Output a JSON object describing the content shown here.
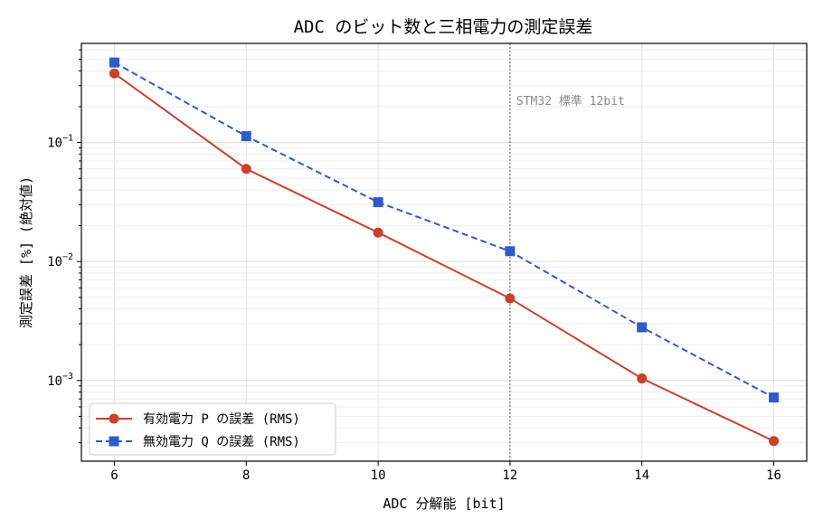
{
  "chart_data": {
    "type": "line",
    "title": "ADC のビット数と三相電力の測定誤差",
    "xlabel": "ADC 分解能 [bit]",
    "ylabel": "測定誤差 [%] (絶対値)",
    "x": [
      6,
      8,
      10,
      12,
      14,
      16
    ],
    "xlim": [
      5.5,
      16.5
    ],
    "ylim": [
      0.00021,
      0.68
    ],
    "yscale": "log",
    "xticks": [
      "6",
      "8",
      "10",
      "12",
      "14",
      "16"
    ],
    "yticks": [
      {
        "value": 0.001,
        "base": "10",
        "exp": "−3"
      },
      {
        "value": 0.01,
        "base": "10",
        "exp": "−2"
      },
      {
        "value": 0.1,
        "base": "10",
        "exp": "−1"
      }
    ],
    "grid": true,
    "legend_position": "lower-left",
    "series": [
      {
        "name": "有効電力 P の誤差 (RMS)",
        "values": [
          0.38,
          0.06,
          0.0175,
          0.0049,
          0.00104,
          0.00031
        ],
        "color": "#cc4028",
        "marker": "circle",
        "linestyle": "solid"
      },
      {
        "name": "無効電力 Q の誤差 (RMS)",
        "values": [
          0.47,
          0.113,
          0.0315,
          0.0122,
          0.0028,
          0.00072
        ],
        "color": "#2e5bcc",
        "marker": "square",
        "linestyle": "dashed"
      }
    ],
    "annotations": [
      {
        "x": 12,
        "text": "STM32 標準 12bit",
        "style": "vertical-dotted-line"
      }
    ]
  }
}
